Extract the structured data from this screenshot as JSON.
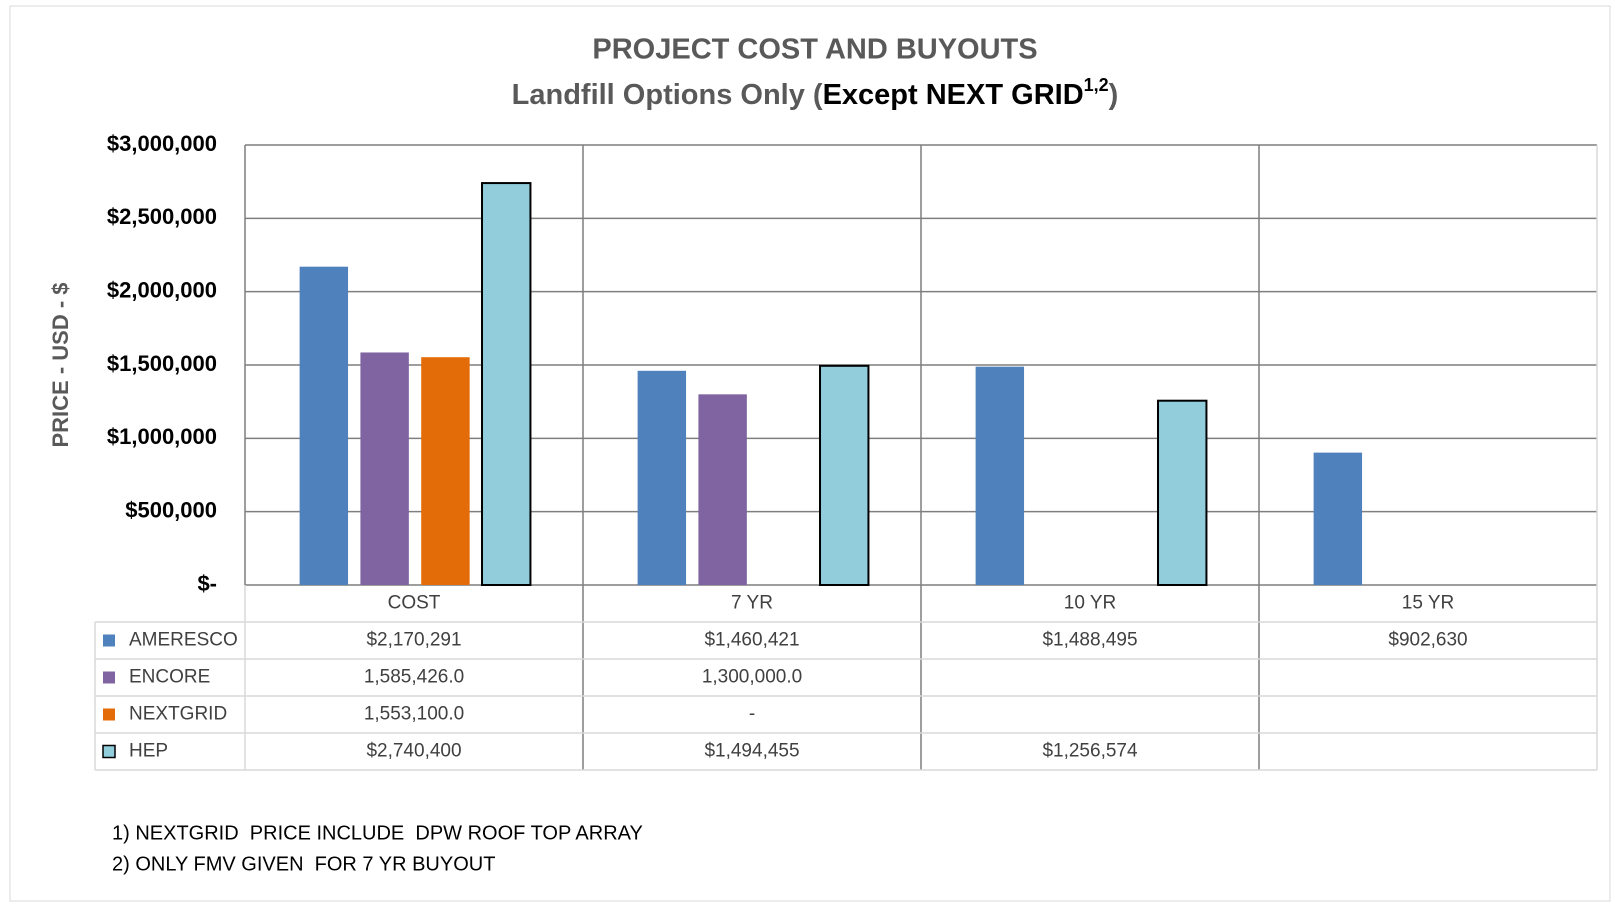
{
  "chart_data": {
    "type": "bar",
    "title": "PROJECT COST AND BUYOUTS",
    "subtitle_parts": [
      "Landfill Options Only (",
      "Except NEXT GRID",
      "1,2",
      ")"
    ],
    "y_label": "PRICE - USD - $",
    "categories": [
      "COST",
      "7 YR",
      "10 YR",
      "15 YR"
    ],
    "series": [
      {
        "name": "AMERESCO",
        "color": "#4f81bd",
        "values": [
          2170291,
          1460421,
          1488495,
          902630
        ],
        "value_labels": [
          "$2,170,291",
          "$1,460,421",
          "$1,488,495",
          "$902,630"
        ]
      },
      {
        "name": "ENCORE",
        "color": "#8064a2",
        "values": [
          1585426,
          1300000,
          null,
          null
        ],
        "value_labels": [
          "1,585,426.0",
          "1,300,000.0",
          null,
          null
        ]
      },
      {
        "name": "NEXTGRID",
        "color": "#e36c09",
        "values": [
          1553100,
          0,
          null,
          null
        ],
        "value_labels": [
          "1,553,100.0",
          "-",
          null,
          null
        ]
      },
      {
        "name": "HEP",
        "color": "#92cddc",
        "values": [
          2740400,
          1494455,
          1256574,
          null
        ],
        "value_labels": [
          "$2,740,400",
          "$1,494,455",
          "$1,256,574",
          null
        ]
      }
    ],
    "ylim": [
      0,
      3000000
    ],
    "yticks": [
      {
        "value": 0,
        "label": "$-"
      },
      {
        "value": 500000,
        "label": "$500,000"
      },
      {
        "value": 1000000,
        "label": "$1,000,000"
      },
      {
        "value": 1500000,
        "label": "$1,500,000"
      },
      {
        "value": 2000000,
        "label": "$2,000,000"
      },
      {
        "value": 2500000,
        "label": "$2,500,000"
      },
      {
        "value": 3000000,
        "label": "$3,000,000"
      }
    ],
    "grid": true,
    "footnotes": [
      "1) NEXTGRID  PRICE INCLUDE  DPW ROOF TOP ARRAY",
      "2) ONLY FMV GIVEN  FOR 7 YR BUYOUT"
    ]
  }
}
